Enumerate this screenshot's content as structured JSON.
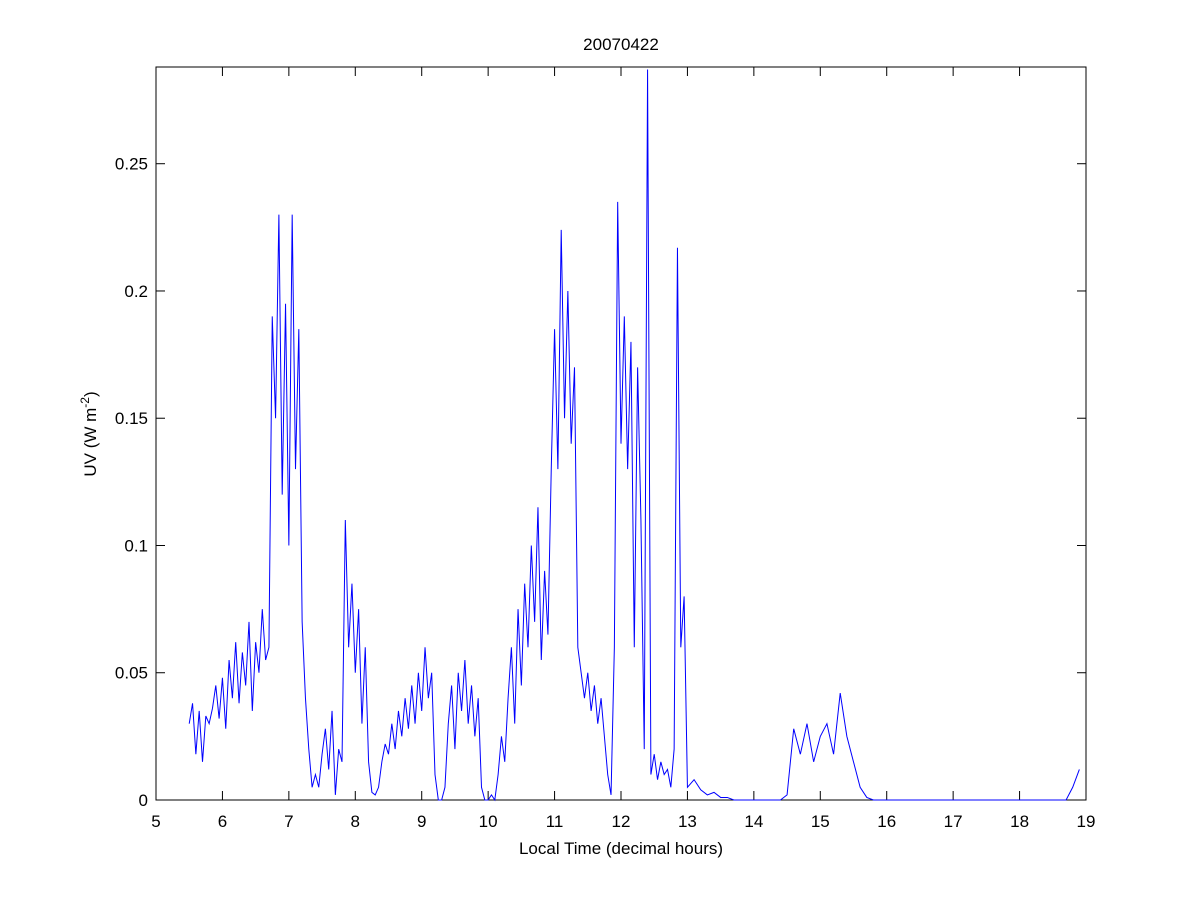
{
  "chart_data": {
    "type": "line",
    "title": "20070422",
    "xlabel": "Local Time (decimal hours)",
    "ylabel": [
      "UV (W m",
      "-2",
      ")"
    ],
    "x": [
      5.5,
      5.55,
      5.6,
      5.65,
      5.7,
      5.75,
      5.8,
      5.85,
      5.9,
      5.95,
      6,
      6.05,
      6.1,
      6.15,
      6.2,
      6.25,
      6.3,
      6.35,
      6.4,
      6.45,
      6.5,
      6.55,
      6.6,
      6.65,
      6.7,
      6.75,
      6.8,
      6.85,
      6.9,
      6.95,
      7,
      7.05,
      7.1,
      7.15,
      7.2,
      7.25,
      7.3,
      7.35,
      7.4,
      7.45,
      7.5,
      7.55,
      7.6,
      7.65,
      7.7,
      7.75,
      7.8,
      7.85,
      7.9,
      7.95,
      8,
      8.05,
      8.1,
      8.15,
      8.2,
      8.25,
      8.3,
      8.35,
      8.4,
      8.45,
      8.5,
      8.55,
      8.6,
      8.65,
      8.7,
      8.75,
      8.8,
      8.85,
      8.9,
      8.95,
      9,
      9.05,
      9.1,
      9.15,
      9.2,
      9.25,
      9.3,
      9.35,
      9.4,
      9.45,
      9.5,
      9.55,
      9.6,
      9.65,
      9.7,
      9.75,
      9.8,
      9.85,
      9.9,
      9.95,
      10,
      10.05,
      10.1,
      10.15,
      10.2,
      10.25,
      10.3,
      10.35,
      10.4,
      10.45,
      10.5,
      10.55,
      10.6,
      10.65,
      10.7,
      10.75,
      10.8,
      10.85,
      10.9,
      10.95,
      11,
      11.05,
      11.1,
      11.15,
      11.2,
      11.25,
      11.3,
      11.35,
      11.4,
      11.45,
      11.5,
      11.55,
      11.6,
      11.65,
      11.7,
      11.75,
      11.8,
      11.85,
      11.9,
      11.95,
      12,
      12.05,
      12.1,
      12.15,
      12.2,
      12.25,
      12.3,
      12.35,
      12.4,
      12.45,
      12.5,
      12.55,
      12.6,
      12.65,
      12.7,
      12.75,
      12.8,
      12.85,
      12.9,
      12.95,
      13,
      13.1,
      13.2,
      13.3,
      13.4,
      13.5,
      13.6,
      13.7,
      13.8,
      13.9,
      14,
      14.1,
      14.2,
      14.3,
      14.4,
      14.5,
      14.6,
      14.7,
      14.8,
      14.9,
      15,
      15.1,
      15.2,
      15.3,
      15.4,
      15.5,
      15.6,
      15.7,
      15.8,
      15.9,
      16,
      16.1,
      16.2,
      16.3,
      16.4,
      16.5,
      16.6,
      16.7,
      16.8,
      16.9,
      17,
      17.1,
      17.2,
      17.3,
      17.4,
      17.5,
      17.6,
      17.7,
      17.8,
      17.9,
      18,
      18.1,
      18.2,
      18.3,
      18.4,
      18.5,
      18.6,
      18.7,
      18.8,
      18.9
    ],
    "series": [
      {
        "color": "#0000ff",
        "values": [
          0.03,
          0.038,
          0.018,
          0.035,
          0.015,
          0.033,
          0.03,
          0.036,
          0.045,
          0.032,
          0.048,
          0.028,
          0.055,
          0.04,
          0.062,
          0.038,
          0.058,
          0.045,
          0.07,
          0.035,
          0.062,
          0.05,
          0.075,
          0.055,
          0.06,
          0.19,
          0.15,
          0.23,
          0.12,
          0.195,
          0.1,
          0.23,
          0.13,
          0.185,
          0.07,
          0.04,
          0.02,
          0.005,
          0.01,
          0.005,
          0.018,
          0.028,
          0.012,
          0.035,
          0.002,
          0.02,
          0.015,
          0.11,
          0.06,
          0.085,
          0.05,
          0.075,
          0.03,
          0.06,
          0.015,
          0.003,
          0.002,
          0.005,
          0.015,
          0.022,
          0.018,
          0.03,
          0.02,
          0.035,
          0.025,
          0.04,
          0.028,
          0.045,
          0.03,
          0.05,
          0.035,
          0.06,
          0.04,
          0.05,
          0.01,
          0,
          0,
          0.005,
          0.03,
          0.045,
          0.02,
          0.05,
          0.035,
          0.055,
          0.03,
          0.045,
          0.025,
          0.04,
          0.005,
          0,
          0,
          0.002,
          0,
          0.01,
          0.025,
          0.015,
          0.04,
          0.06,
          0.03,
          0.075,
          0.045,
          0.085,
          0.06,
          0.1,
          0.07,
          0.115,
          0.055,
          0.09,
          0.065,
          0.13,
          0.185,
          0.13,
          0.224,
          0.15,
          0.2,
          0.14,
          0.17,
          0.06,
          0.05,
          0.04,
          0.05,
          0.035,
          0.045,
          0.03,
          0.04,
          0.025,
          0.01,
          0.002,
          0.06,
          0.235,
          0.14,
          0.19,
          0.13,
          0.18,
          0.06,
          0.17,
          0.11,
          0.02,
          0.287,
          0.01,
          0.018,
          0.008,
          0.015,
          0.01,
          0.012,
          0.005,
          0.02,
          0.217,
          0.06,
          0.08,
          0.005,
          0.008,
          0.004,
          0.002,
          0.003,
          0.001,
          0.001,
          0,
          0,
          0,
          0,
          0,
          0,
          0,
          0,
          0.002,
          0.028,
          0.018,
          0.03,
          0.015,
          0.025,
          0.03,
          0.018,
          0.042,
          0.025,
          0.015,
          0.005,
          0.001,
          0,
          0,
          0,
          0,
          0,
          0,
          0,
          0,
          0,
          0,
          0,
          0,
          0,
          0,
          0,
          0,
          0,
          0,
          0,
          0,
          0,
          0,
          0,
          0,
          0,
          0,
          0,
          0,
          0,
          0,
          0.005,
          0.012
        ]
      }
    ],
    "xlim": [
      5,
      19
    ],
    "ylim": [
      0,
      0.288
    ],
    "xticks": [
      5,
      6,
      7,
      8,
      9,
      10,
      11,
      12,
      13,
      14,
      15,
      16,
      17,
      18,
      19
    ],
    "yticks": [
      0,
      0.05,
      0.1,
      0.15,
      0.2,
      0.25
    ]
  }
}
